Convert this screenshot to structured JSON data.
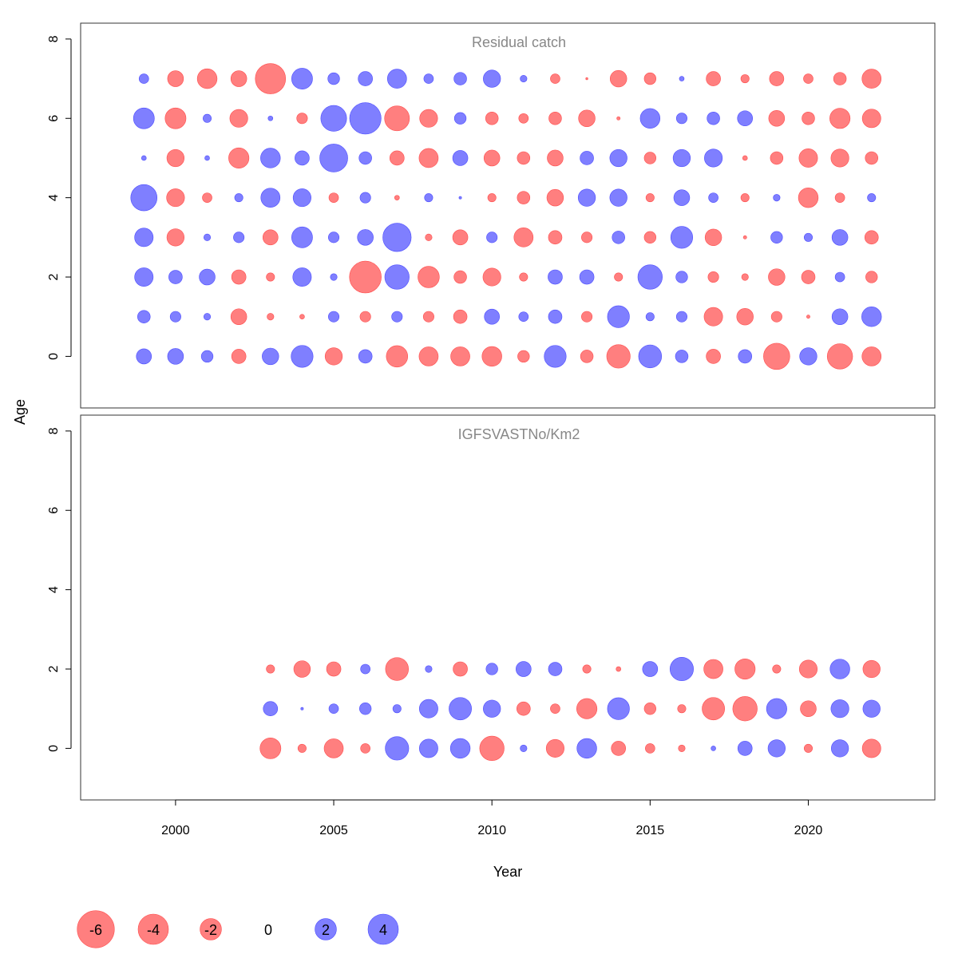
{
  "chart_data": {
    "type": "scatter",
    "subtype": "bubble",
    "xlabel": "Year",
    "ylabel": "Age",
    "xlim": [
      1997,
      2024
    ],
    "x_ticks": [
      2000,
      2005,
      2010,
      2015,
      2020
    ],
    "colors": {
      "negative": "#ff7f7f",
      "positive": "#7f7fff",
      "negative_stroke": "#ff4d4d",
      "positive_stroke": "#4d4dff"
    },
    "legend": {
      "placement": "bottom-left",
      "values": [
        -6,
        -4,
        -2,
        0,
        2,
        4
      ],
      "labels": [
        "-6",
        "-4",
        "-2",
        "0",
        "2",
        "4"
      ]
    },
    "panels": [
      {
        "title": "Residual catch",
        "ylim": [
          -1.3,
          8.4
        ],
        "y_ticks": [
          0,
          2,
          4,
          6,
          8
        ],
        "years": [
          1999,
          2000,
          2001,
          2002,
          2003,
          2004,
          2005,
          2006,
          2007,
          2008,
          2009,
          2010,
          2011,
          2012,
          2013,
          2014,
          2015,
          2016,
          2017,
          2018,
          2019,
          2020,
          2021,
          2022
        ],
        "ages": [
          0,
          1,
          2,
          3,
          4,
          5,
          6,
          7
        ],
        "residuals": [
          [
            1.0,
            1.1,
            0.6,
            -0.9,
            1.2,
            2.1,
            -1.3,
            0.8,
            -2.0,
            -1.6,
            -1.6,
            -1.7,
            -0.6,
            2.1,
            -0.7,
            -2.4,
            2.3,
            0.7,
            -0.9,
            0.8,
            -3.0,
            1.3,
            -2.8,
            -1.6
          ],
          [
            0.7,
            0.5,
            0.2,
            -1.1,
            -0.2,
            -0.1,
            0.5,
            -0.5,
            0.5,
            -0.5,
            -0.8,
            1.0,
            0.4,
            0.8,
            -0.5,
            2.1,
            0.3,
            0.5,
            -1.5,
            -1.2,
            -0.5,
            -0.05,
            1.1,
            1.7
          ],
          [
            1.5,
            0.8,
            1.1,
            -0.9,
            -0.3,
            1.5,
            0.2,
            -4.4,
            2.6,
            -2.0,
            -0.7,
            -1.4,
            -0.3,
            0.9,
            0.9,
            -0.3,
            2.6,
            0.6,
            -0.5,
            -0.2,
            -1.2,
            -0.8,
            0.4,
            -0.6
          ],
          [
            1.5,
            -1.3,
            0.2,
            0.5,
            -1.0,
            1.9,
            0.5,
            1.1,
            3.5,
            -0.2,
            -1.0,
            0.5,
            -1.6,
            -0.8,
            -0.5,
            0.7,
            -0.6,
            2.1,
            -1.2,
            -0.05,
            0.6,
            0.3,
            1.1,
            -0.8
          ],
          [
            3.0,
            -1.4,
            -0.4,
            0.3,
            1.6,
            1.4,
            -0.4,
            0.5,
            -0.1,
            0.3,
            0.03,
            -0.3,
            -0.7,
            -1.2,
            1.3,
            1.3,
            -0.3,
            1.1,
            0.4,
            -0.3,
            0.2,
            -1.7,
            -0.4,
            0.3
          ],
          [
            0.1,
            -1.3,
            0.1,
            -1.8,
            1.7,
            0.9,
            3.4,
            0.7,
            -0.9,
            -1.6,
            1.0,
            -1.1,
            -0.7,
            -1.1,
            0.8,
            1.3,
            -0.6,
            1.3,
            1.4,
            -0.1,
            -0.7,
            -1.5,
            -1.4,
            -0.7
          ],
          [
            1.9,
            -1.9,
            0.3,
            -1.4,
            0.1,
            -0.5,
            2.9,
            4.3,
            -2.7,
            -1.4,
            0.6,
            -0.7,
            -0.4,
            -0.7,
            -1.2,
            -0.05,
            1.7,
            0.5,
            0.7,
            1.0,
            -1.1,
            -0.7,
            -1.8,
            -1.5
          ],
          [
            0.4,
            -1.1,
            -1.7,
            -1.1,
            -4.0,
            1.9,
            0.6,
            0.9,
            1.6,
            0.4,
            0.7,
            1.3,
            0.2,
            -0.4,
            -0.02,
            -1.2,
            -0.6,
            0.1,
            -0.9,
            -0.3,
            -0.9,
            -0.4,
            -0.7,
            -1.6
          ]
        ]
      },
      {
        "title": "IGFSVASTNo/Km2",
        "ylim": [
          -1.3,
          8.4
        ],
        "y_ticks": [
          0,
          2,
          4,
          6,
          8
        ],
        "years": [
          2003,
          2004,
          2005,
          2006,
          2007,
          2008,
          2009,
          2010,
          2011,
          2012,
          2013,
          2014,
          2015,
          2016,
          2017,
          2018,
          2019,
          2020,
          2021,
          2022
        ],
        "ages": [
          0,
          1,
          2
        ],
        "residuals": [
          [
            -1.9,
            -0.3,
            -1.6,
            -0.4,
            2.4,
            1.5,
            1.7,
            -2.6,
            0.2,
            -1.4,
            1.7,
            -0.9,
            -0.4,
            -0.2,
            0.1,
            0.9,
            1.3,
            -0.3,
            1.3,
            -1.5
          ],
          [
            0.9,
            0.03,
            0.4,
            0.6,
            0.3,
            1.5,
            2.2,
            1.3,
            -0.8,
            -0.4,
            -1.8,
            2.1,
            -0.6,
            -0.3,
            -2.2,
            -2.6,
            1.8,
            -1.1,
            1.4,
            1.3
          ],
          [
            -0.3,
            -1.2,
            -0.9,
            0.4,
            -2.3,
            0.2,
            -0.9,
            0.6,
            1.0,
            0.8,
            -0.3,
            -0.1,
            1.0,
            2.4,
            -1.6,
            -1.8,
            -0.3,
            -1.4,
            1.7,
            -1.3
          ]
        ]
      }
    ]
  }
}
